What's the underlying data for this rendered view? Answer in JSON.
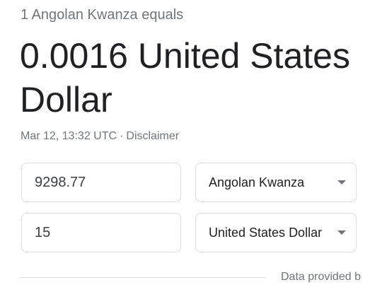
{
  "converter": {
    "equals_text": "1 Angolan Kwanza equals",
    "result_text": "0.0016 United States Dollar",
    "timestamp": "Mar 12, 13:32 UTC",
    "separator": "·",
    "disclaimer_label": "Disclaimer",
    "from": {
      "amount": "9298.77",
      "currency": "Angolan Kwanza"
    },
    "to": {
      "amount": "15",
      "currency": "United States Dollar"
    },
    "provider_text": "Data provided b"
  },
  "icons": {
    "dropdown": "chevron-down-icon"
  },
  "colors": {
    "text_primary": "#202124",
    "text_secondary": "#70757a",
    "border": "#dadce0"
  }
}
